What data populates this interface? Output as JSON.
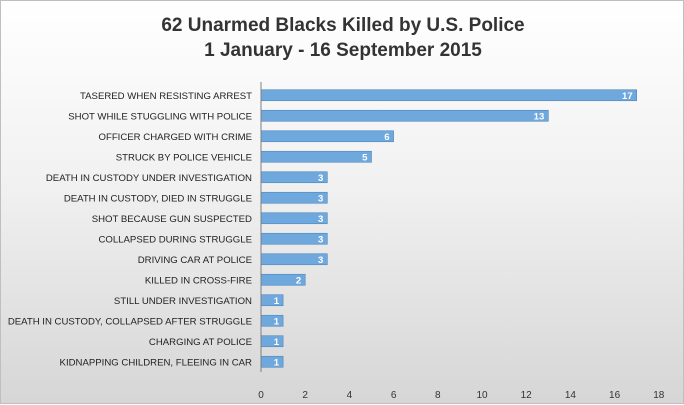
{
  "chart_data": {
    "type": "bar",
    "orientation": "horizontal",
    "title_lines": [
      "62 Unarmed Blacks Killed by U.S. Police",
      "1 January - 16 September 2015"
    ],
    "categories": [
      "TASERED WHEN RESISTING ARREST",
      "SHOT WHILE STUGGLING WITH POLICE",
      "OFFICER CHARGED WITH CRIME",
      "STRUCK BY POLICE VEHICLE",
      "DEATH IN CUSTODY UNDER INVESTIGATION",
      "DEATH IN CUSTODY, DIED IN STRUGGLE",
      "SHOT BECAUSE GUN SUSPECTED",
      "COLLAPSED DURING STRUGGLE",
      "DRIVING CAR AT POLICE",
      "KILLED IN CROSS-FIRE",
      "STILL UNDER INVESTIGATION",
      "DEATH IN CUSTODY, COLLAPSED AFTER STRUGGLE",
      "CHARGING AT POLICE",
      "KIDNAPPING CHILDREN, FLEEING IN CAR"
    ],
    "values": [
      17,
      13,
      6,
      5,
      3,
      3,
      3,
      3,
      3,
      2,
      1,
      1,
      1,
      1
    ],
    "xlim": [
      0,
      18
    ],
    "xticks": [
      0,
      2,
      4,
      6,
      8,
      10,
      12,
      14,
      16,
      18
    ],
    "xlabel": "",
    "ylabel": "",
    "grid": false,
    "data_labels": true,
    "bar_color": "#6fa8dc",
    "bar_edge_color": "#4f86bd"
  }
}
